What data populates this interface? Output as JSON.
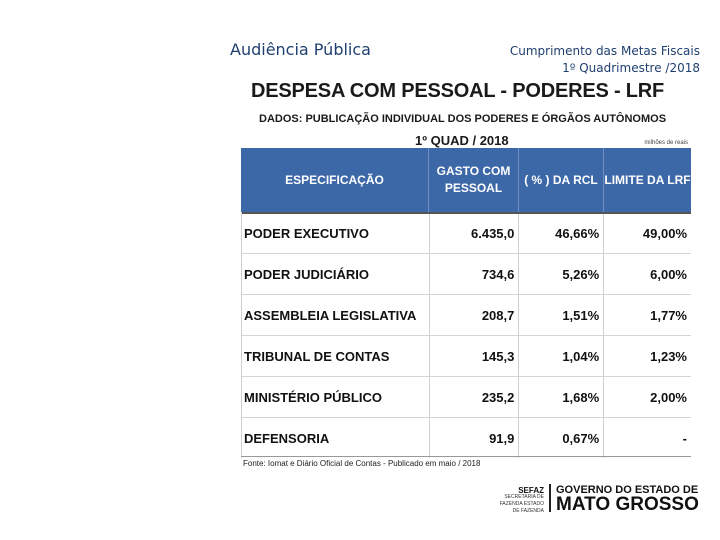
{
  "header": {
    "left_title": "Audiência Pública",
    "right_line1": "Cumprimento das Metas Fiscais",
    "right_line2": "1º Quadrimestre /2018"
  },
  "slide": {
    "title": "DESPESA COM PESSOAL - PODERES - LRF",
    "subtitle": "DADOS: PUBLICAÇÃO INDIVIDUAL DOS PODERES E ÓRGÃOS AUTÔNOMOS",
    "period": "1º QUAD / 2018",
    "unit": "milhões de reais",
    "columns": [
      "ESPECIFICAÇÃO",
      "GASTO COM PESSOAL",
      "( % ) DA RCL",
      "LIMITE DA LRF"
    ],
    "rows": [
      {
        "name": "PODER EXECUTIVO",
        "gasto": "6.435,0",
        "pct": "46,66%",
        "limite": "49,00%"
      },
      {
        "name": "PODER JUDICIÁRIO",
        "gasto": "734,6",
        "pct": "5,26%",
        "limite": "6,00%"
      },
      {
        "name": "ASSEMBLEIA LEGISLATIVA",
        "gasto": "208,7",
        "pct": "1,51%",
        "limite": "1,77%"
      },
      {
        "name": "TRIBUNAL DE CONTAS",
        "gasto": "145,3",
        "pct": "1,04%",
        "limite": "1,23%"
      },
      {
        "name": "MINISTÉRIO PÚBLICO",
        "gasto": "235,2",
        "pct": "1,68%",
        "limite": "2,00%"
      },
      {
        "name": "DEFENSORIA",
        "gasto": "91,9",
        "pct": "0,67%",
        "limite": "-"
      }
    ],
    "source": "Fonte: Iomat e Diário Oficial de Contas - Publicado em maio / 2018"
  },
  "footer": {
    "sefaz": "SEFAZ",
    "sefaz_sub": "SECRETARIA DE FAZENDA ESTADO DE FAZENDA",
    "gov_line1": "GOVERNO DO ESTADO DE",
    "gov_line2": "MATO GROSSO"
  }
}
